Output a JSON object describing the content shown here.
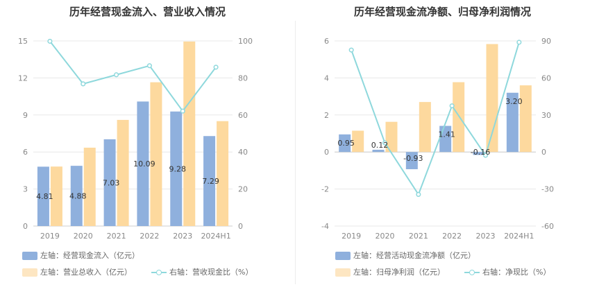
{
  "chart_data": [
    {
      "type": "bar",
      "title": "历年经营现金流入、营业收入情况",
      "categories": [
        "2019",
        "2020",
        "2021",
        "2022",
        "2023",
        "2024H1"
      ],
      "left_axis": {
        "ticks": [
          "0",
          "3",
          "6",
          "9",
          "12",
          "15"
        ],
        "ylim": [
          0,
          15
        ]
      },
      "right_axis": {
        "ticks": [
          "0",
          "20",
          "40",
          "60",
          "80",
          "100"
        ],
        "ylim": [
          0,
          100
        ]
      },
      "series": [
        {
          "name": "左轴：经营现金流入（亿元）",
          "type": "bar",
          "axis": "left",
          "color": "#8fb0dd",
          "values": [
            4.81,
            4.88,
            7.03,
            10.09,
            9.28,
            7.29
          ],
          "labels": [
            "4.81",
            "4.88",
            "7.03",
            "10.09",
            "9.28",
            "7.29"
          ]
        },
        {
          "name": "左轴：营业总收入（亿元）",
          "type": "bar",
          "axis": "left",
          "color": "#fdd99e",
          "values": [
            4.82,
            6.35,
            8.6,
            11.65,
            14.95,
            8.5
          ]
        },
        {
          "name": "右轴：营收现金比（%）",
          "type": "line",
          "axis": "right",
          "color": "#8ed8dc",
          "values": [
            99.8,
            76.8,
            81.7,
            86.6,
            62.1,
            85.8
          ]
        }
      ],
      "grid": true,
      "legend_position": "bottom-left"
    },
    {
      "type": "bar",
      "title": "历年经营现金流净额、归母净利润情况",
      "categories": [
        "2019",
        "2020",
        "2021",
        "2022",
        "2023",
        "2024H1"
      ],
      "left_axis": {
        "ticks": [
          "-4",
          "-2",
          "0",
          "2",
          "4",
          "6"
        ],
        "ylim": [
          -4,
          6
        ]
      },
      "right_axis": {
        "ticks": [
          "-60",
          "-30",
          "0",
          "30",
          "60",
          "90"
        ],
        "ylim": [
          -60,
          90
        ]
      },
      "series": [
        {
          "name": "左轴：经营活动现金流净额（亿元）",
          "type": "bar",
          "axis": "left",
          "color": "#8fb0dd",
          "values": [
            0.95,
            0.12,
            -0.93,
            1.41,
            -0.16,
            3.2
          ],
          "labels": [
            "0.95",
            "0.12",
            "-0.93",
            "1.41",
            "-0.16",
            "3.20"
          ]
        },
        {
          "name": "左轴：归母净利润（亿元）",
          "type": "bar",
          "axis": "left",
          "color": "#fdd99e",
          "values": [
            1.15,
            1.63,
            2.7,
            3.77,
            5.83,
            3.6
          ]
        },
        {
          "name": "右轴：净现比（%）",
          "type": "line",
          "axis": "right",
          "color": "#8ed8dc",
          "values": [
            82.6,
            7.4,
            -34.4,
            37.4,
            -2.7,
            88.9
          ]
        }
      ],
      "grid": true,
      "legend_position": "bottom-left"
    }
  ]
}
